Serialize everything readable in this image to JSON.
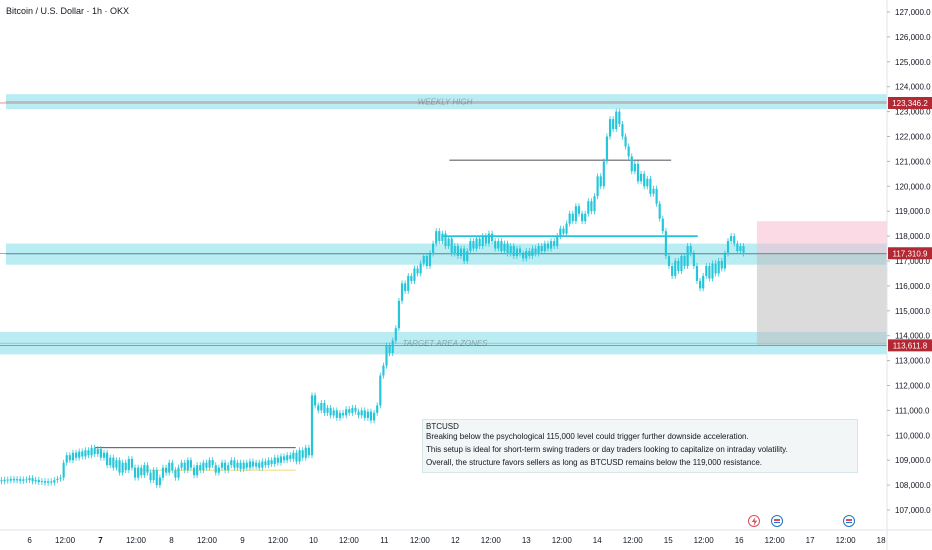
{
  "header": {
    "title": "Bitcoin / U.S. Dollar · 1h · OKX"
  },
  "chart_data": {
    "type": "candlestick",
    "symbol": "BTCUSD",
    "ylim": [
      106500,
      127500
    ],
    "xlim": [
      0,
      300
    ],
    "y_ticks": [
      "107,000.0",
      "108,000.0",
      "109,000.0",
      "110,000.0",
      "111,000.0",
      "112,000.0",
      "113,000.0",
      "114,000.0",
      "115,000.0",
      "116,000.0",
      "117,000.0",
      "118,000.0",
      "119,000.0",
      "120,000.0",
      "121,000.0",
      "122,000.0",
      "123,000.0",
      "124,000.0",
      "125,000.0",
      "126,000.0",
      "127,000.0"
    ],
    "x_ticks": [
      {
        "label": "6",
        "t": 10
      },
      {
        "label": "12:00",
        "t": 22
      },
      {
        "label": "7",
        "t": 34
      },
      {
        "label": "12:00",
        "t": 46
      },
      {
        "label": "8",
        "t": 58
      },
      {
        "label": "12:00",
        "t": 70
      },
      {
        "label": "9",
        "t": 82
      },
      {
        "label": "12:00",
        "t": 94
      },
      {
        "label": "10",
        "t": 106
      },
      {
        "label": "12:00",
        "t": 118
      },
      {
        "label": "11",
        "t": 130
      },
      {
        "label": "12:00",
        "t": 142
      },
      {
        "label": "12",
        "t": 154
      },
      {
        "label": "12:00",
        "t": 166
      },
      {
        "label": "13",
        "t": 178
      },
      {
        "label": "12:00",
        "t": 190
      },
      {
        "label": "14",
        "t": 202
      },
      {
        "label": "12:00",
        "t": 214
      },
      {
        "label": "15",
        "t": 226
      },
      {
        "label": "12:00",
        "t": 238
      },
      {
        "label": "16",
        "t": 250
      },
      {
        "label": "12:00",
        "t": 262
      },
      {
        "label": "17",
        "t": 274
      },
      {
        "label": "12:00",
        "t": 286
      },
      {
        "label": "18",
        "t": 298
      }
    ],
    "price_labels": [
      {
        "text": "123,346.2",
        "value": 123346.2,
        "color": "#b22833"
      },
      {
        "text": "117,310.9",
        "value": 117310.9,
        "color": "#b22833"
      },
      {
        "text": "113,611.8",
        "value": 113611.8,
        "color": "#b22833"
      }
    ],
    "zones": [
      {
        "label": "WEEKLY HIGH",
        "low": 123100,
        "high": 123700,
        "t0": 2,
        "t1": 300,
        "color": "rgba(128,222,234,0.55)"
      },
      {
        "label": "",
        "low": 116850,
        "high": 117700,
        "t0": 2,
        "t1": 300,
        "color": "rgba(128,222,234,0.55)"
      },
      {
        "label": "TARGET AREA ZONES",
        "low": 113250,
        "high": 114150,
        "t0": 0,
        "t1": 300,
        "color": "rgba(128,222,234,0.55)"
      }
    ],
    "trade_box": {
      "entry": 117310.9,
      "stop": 118600,
      "target": 113611.8,
      "t0": 256,
      "t1": 300
    },
    "levels": [
      {
        "value": 121050,
        "t0": 152,
        "t1": 227,
        "color": "#131722"
      },
      {
        "value": 118000,
        "t0": 150,
        "t1": 236,
        "color": "#00bcd4"
      },
      {
        "value": 109500,
        "t0": 32,
        "t1": 100,
        "color": "#131722"
      },
      {
        "value": 108600,
        "t0": 48,
        "t1": 100,
        "color": "#f2c94c"
      }
    ],
    "candles": [
      [
        108200,
        108150
      ],
      [
        108150,
        108220
      ],
      [
        108220,
        108180
      ],
      [
        108180,
        108250
      ],
      [
        108250,
        108190
      ],
      [
        108190,
        108240
      ],
      [
        108240,
        108170
      ],
      [
        108170,
        108230
      ],
      [
        108230,
        108200
      ],
      [
        108200,
        108280
      ],
      [
        108280,
        108150
      ],
      [
        108150,
        108210
      ],
      [
        108210,
        108120
      ],
      [
        108120,
        108160
      ],
      [
        108160,
        108090
      ],
      [
        108090,
        108150
      ],
      [
        108150,
        108100
      ],
      [
        108100,
        108200
      ],
      [
        108200,
        108250
      ],
      [
        108250,
        108300
      ],
      [
        108300,
        108900
      ],
      [
        108900,
        109200
      ],
      [
        109200,
        109000
      ],
      [
        109000,
        109300
      ],
      [
        109300,
        109100
      ],
      [
        109100,
        109350
      ],
      [
        109350,
        109150
      ],
      [
        109150,
        109400
      ],
      [
        109400,
        109200
      ],
      [
        109200,
        109500
      ],
      [
        109500,
        109250
      ],
      [
        109250,
        109450
      ],
      [
        109450,
        109100
      ],
      [
        109100,
        109300
      ],
      [
        109300,
        108800
      ],
      [
        108800,
        109100
      ],
      [
        109100,
        108700
      ],
      [
        108700,
        109000
      ],
      [
        109000,
        108500
      ],
      [
        108500,
        108900
      ],
      [
        108900,
        108600
      ],
      [
        108600,
        109050
      ],
      [
        109050,
        108700
      ],
      [
        108700,
        108300
      ],
      [
        108300,
        108700
      ],
      [
        108700,
        108400
      ],
      [
        108400,
        108800
      ],
      [
        108800,
        108500
      ],
      [
        108500,
        108200
      ],
      [
        108200,
        108600
      ],
      [
        108600,
        108000
      ],
      [
        108000,
        108300
      ],
      [
        108300,
        108700
      ],
      [
        108700,
        108500
      ],
      [
        108500,
        108900
      ],
      [
        108900,
        108600
      ],
      [
        108600,
        108300
      ],
      [
        108300,
        108700
      ],
      [
        108700,
        108900
      ],
      [
        108900,
        108600
      ],
      [
        108600,
        109000
      ],
      [
        109000,
        108700
      ],
      [
        108700,
        108400
      ],
      [
        108400,
        108800
      ],
      [
        108800,
        108600
      ],
      [
        108600,
        108900
      ],
      [
        108900,
        108700
      ],
      [
        108700,
        109000
      ],
      [
        109000,
        108800
      ],
      [
        108800,
        108500
      ],
      [
        108500,
        108700
      ],
      [
        108700,
        108900
      ],
      [
        108900,
        108600
      ],
      [
        108600,
        108800
      ],
      [
        108800,
        109000
      ],
      [
        109000,
        108700
      ],
      [
        108700,
        108900
      ],
      [
        108900,
        108650
      ],
      [
        108650,
        108900
      ],
      [
        108900,
        108700
      ],
      [
        108700,
        108950
      ],
      [
        108950,
        108750
      ],
      [
        108750,
        108900
      ],
      [
        108900,
        108700
      ],
      [
        108700,
        108950
      ],
      [
        108950,
        108800
      ],
      [
        108800,
        109000
      ],
      [
        109000,
        108850
      ],
      [
        108850,
        109100
      ],
      [
        109100,
        108900
      ],
      [
        108900,
        109150
      ],
      [
        109150,
        109000
      ],
      [
        109000,
        109200
      ],
      [
        109200,
        109050
      ],
      [
        109050,
        109300
      ],
      [
        109300,
        108950
      ],
      [
        108950,
        109400
      ],
      [
        109400,
        109100
      ],
      [
        109100,
        109500
      ],
      [
        109500,
        109200
      ],
      [
        109200,
        111600
      ],
      [
        111600,
        111200
      ],
      [
        111200,
        111000
      ],
      [
        111000,
        111300
      ],
      [
        111300,
        110900
      ],
      [
        110900,
        111100
      ],
      [
        111100,
        110800
      ],
      [
        110800,
        111000
      ],
      [
        111000,
        110700
      ],
      [
        110700,
        110900
      ],
      [
        110900,
        110800
      ],
      [
        110800,
        111050
      ],
      [
        111050,
        110900
      ],
      [
        110900,
        111100
      ],
      [
        111100,
        110950
      ],
      [
        110950,
        110800
      ],
      [
        110800,
        111000
      ],
      [
        111000,
        110700
      ],
      [
        110700,
        110950
      ],
      [
        110950,
        110600
      ],
      [
        110600,
        110900
      ],
      [
        110900,
        111200
      ],
      [
        111200,
        112400
      ],
      [
        112400,
        112800
      ],
      [
        112800,
        113600
      ],
      [
        113600,
        113300
      ],
      [
        113300,
        113800
      ],
      [
        113800,
        114300
      ],
      [
        114300,
        115400
      ],
      [
        115400,
        116100
      ],
      [
        116100,
        115800
      ],
      [
        115800,
        116400
      ],
      [
        116400,
        116200
      ],
      [
        116200,
        116700
      ],
      [
        116700,
        116500
      ],
      [
        116500,
        116900
      ],
      [
        116900,
        117200
      ],
      [
        117200,
        116800
      ],
      [
        116800,
        117300
      ],
      [
        117300,
        117700
      ],
      [
        117700,
        118200
      ],
      [
        118200,
        117800
      ],
      [
        117800,
        118100
      ],
      [
        118100,
        117600
      ],
      [
        117600,
        117900
      ],
      [
        117900,
        117300
      ],
      [
        117300,
        117600
      ],
      [
        117600,
        117200
      ],
      [
        117200,
        117500
      ],
      [
        117500,
        117000
      ],
      [
        117000,
        117400
      ],
      [
        117400,
        117800
      ],
      [
        117800,
        117500
      ],
      [
        117500,
        117900
      ],
      [
        117900,
        117600
      ],
      [
        117600,
        118000
      ],
      [
        118000,
        117700
      ],
      [
        117700,
        118100
      ],
      [
        118100,
        117800
      ],
      [
        117800,
        117500
      ],
      [
        117500,
        117800
      ],
      [
        117800,
        117400
      ],
      [
        117400,
        117700
      ],
      [
        117700,
        117300
      ],
      [
        117300,
        117600
      ],
      [
        117600,
        117200
      ],
      [
        117200,
        117500
      ],
      [
        117500,
        117300
      ],
      [
        117300,
        117100
      ],
      [
        117100,
        117400
      ],
      [
        117400,
        117200
      ],
      [
        117200,
        117500
      ],
      [
        117500,
        117300
      ],
      [
        117300,
        117600
      ],
      [
        117600,
        117400
      ],
      [
        117400,
        117700
      ],
      [
        117700,
        117500
      ],
      [
        117500,
        117800
      ],
      [
        117800,
        117600
      ],
      [
        117600,
        118000
      ],
      [
        118000,
        118300
      ],
      [
        118300,
        118100
      ],
      [
        118100,
        118500
      ],
      [
        118500,
        118900
      ],
      [
        118900,
        118600
      ],
      [
        118600,
        119200
      ],
      [
        119200,
        118900
      ],
      [
        118900,
        118600
      ],
      [
        118600,
        118900
      ],
      [
        118900,
        119400
      ],
      [
        119400,
        119000
      ],
      [
        119000,
        119600
      ],
      [
        119600,
        120400
      ],
      [
        120400,
        120000
      ],
      [
        120000,
        121000
      ],
      [
        121000,
        122000
      ],
      [
        122000,
        122700
      ],
      [
        122700,
        122300
      ],
      [
        122300,
        123000
      ],
      [
        123000,
        122500
      ],
      [
        122500,
        122000
      ],
      [
        122000,
        121600
      ],
      [
        121600,
        121200
      ],
      [
        121200,
        120600
      ],
      [
        120600,
        120900
      ],
      [
        120900,
        120200
      ],
      [
        120200,
        120500
      ],
      [
        120500,
        120000
      ],
      [
        120000,
        120300
      ],
      [
        120300,
        119700
      ],
      [
        119700,
        119900
      ],
      [
        119900,
        119300
      ],
      [
        119300,
        118700
      ],
      [
        118700,
        118200
      ],
      [
        118200,
        117200
      ],
      [
        117200,
        116800
      ],
      [
        116800,
        116400
      ],
      [
        116400,
        117000
      ],
      [
        117000,
        116600
      ],
      [
        116600,
        117200
      ],
      [
        117200,
        116800
      ],
      [
        116800,
        117600
      ],
      [
        117600,
        117300
      ],
      [
        117300,
        116800
      ],
      [
        116800,
        116200
      ],
      [
        116200,
        115900
      ],
      [
        115900,
        116400
      ],
      [
        116400,
        116800
      ],
      [
        116800,
        116300
      ],
      [
        116300,
        116900
      ],
      [
        116900,
        116500
      ],
      [
        116500,
        117000
      ],
      [
        117000,
        116700
      ],
      [
        116700,
        117300
      ],
      [
        117300,
        117800
      ],
      [
        117800,
        118000
      ],
      [
        118000,
        117700
      ],
      [
        117700,
        117400
      ],
      [
        117400,
        117600
      ],
      [
        117600,
        117300
      ]
    ]
  },
  "annotation": {
    "heading": "BTCUSD",
    "line1": "Breaking below the psychological 115,000 level could trigger further downside acceleration.",
    "line2": "This setup is ideal for short-term swing traders or day traders looking to capitalize on intraday volatility.",
    "line3": "Overall, the structure favors sellers as long as BTCUSD remains below the 119,000 resistance."
  },
  "colors": {
    "candle": "#26c6da",
    "zone_text": "#8aa3ad",
    "axis_text": "#131722",
    "stop_fill": "rgba(248,187,208,0.55)",
    "target_fill": "rgba(189,189,189,0.55)",
    "price_line": "#b22833"
  },
  "icons": {
    "event1": "lightning-icon",
    "event2": "flag-icon",
    "event3": "flag-icon"
  }
}
